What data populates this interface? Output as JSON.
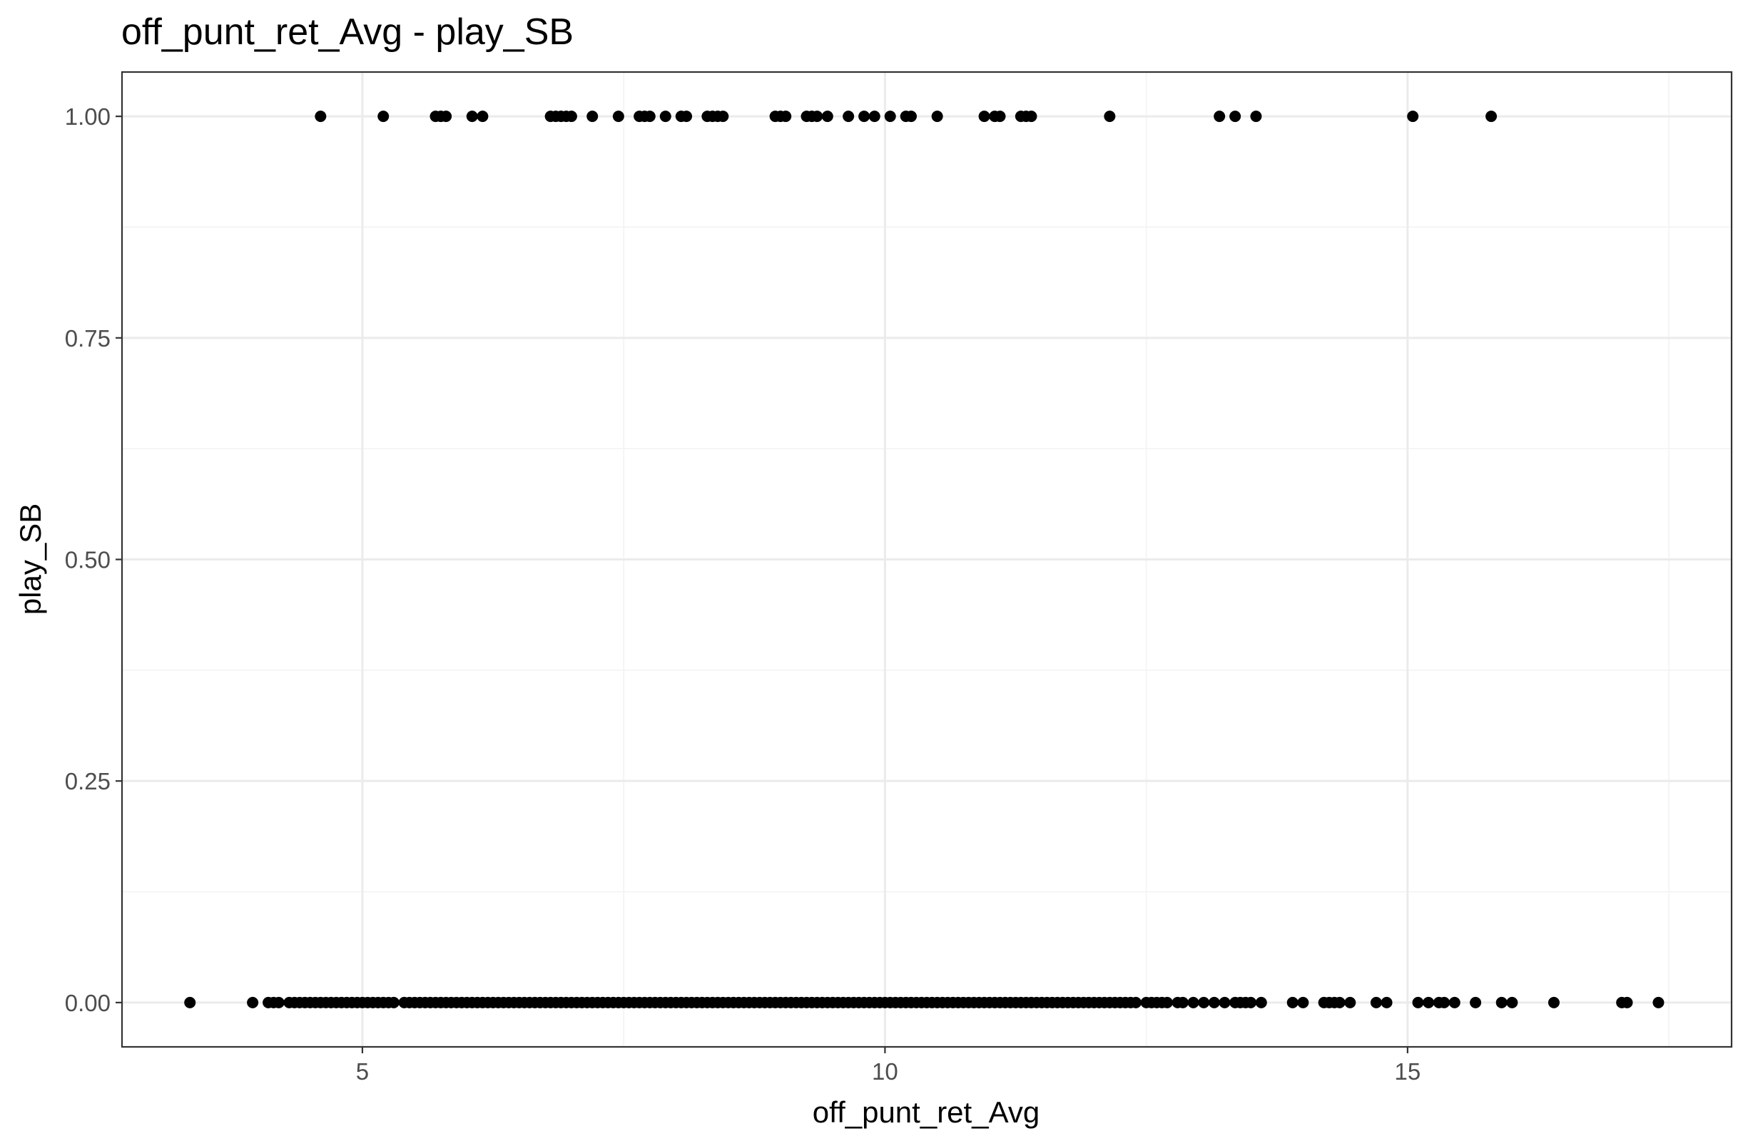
{
  "chart_data": {
    "type": "scatter",
    "title": "off_punt_ret_Avg - play_SB",
    "xlabel": "off_punt_ret_Avg",
    "ylabel": "play_SB",
    "xlim": [
      2.7,
      18.1
    ],
    "ylim": [
      -0.05,
      1.05
    ],
    "x_ticks": [
      5,
      10,
      15
    ],
    "x_tick_labels": [
      "5",
      "10",
      "15"
    ],
    "y_ticks": [
      0,
      0.25,
      0.5,
      0.75,
      1
    ],
    "y_tick_labels": [
      "0.00",
      "0.25",
      "0.50",
      "0.75",
      "1.00"
    ],
    "grid": true,
    "point_color": "#000000",
    "series": [
      {
        "y": 1,
        "x": [
          4.6,
          5.2,
          5.7,
          5.75,
          5.8,
          6.05,
          6.15,
          6.8,
          6.85,
          6.9,
          6.95,
          7.0,
          7.2,
          7.45,
          7.65,
          7.7,
          7.75,
          7.9,
          8.05,
          8.1,
          8.3,
          8.35,
          8.4,
          8.45,
          8.95,
          9.0,
          9.05,
          9.25,
          9.3,
          9.35,
          9.45,
          9.65,
          9.8,
          9.9,
          10.05,
          10.2,
          10.25,
          10.5,
          10.95,
          11.05,
          11.1,
          11.3,
          11.35,
          11.4,
          12.15,
          13.2,
          13.35,
          13.55,
          15.05,
          15.8
        ]
      },
      {
        "y": 0,
        "x": [
          3.35,
          3.95,
          4.1,
          4.15,
          4.2,
          4.3,
          4.35,
          4.4,
          4.45,
          4.5,
          4.55,
          4.6,
          4.65,
          4.7,
          4.75,
          4.8,
          4.85,
          4.9,
          4.95,
          5.0,
          5.05,
          5.1,
          5.15,
          5.2,
          5.25,
          5.3,
          5.4,
          5.45,
          5.5,
          5.55,
          5.6,
          5.65,
          5.7,
          5.75,
          5.8,
          5.85,
          5.9,
          5.95,
          6.0,
          6.05,
          6.1,
          6.15,
          6.2,
          6.25,
          6.3,
          6.35,
          6.4,
          6.45,
          6.5,
          6.55,
          6.6,
          6.65,
          6.7,
          6.75,
          6.8,
          6.85,
          6.9,
          6.95,
          7.0,
          7.05,
          7.1,
          7.15,
          7.2,
          7.25,
          7.3,
          7.35,
          7.4,
          7.45,
          7.5,
          7.55,
          7.6,
          7.65,
          7.7,
          7.75,
          7.8,
          7.85,
          7.9,
          7.95,
          8.0,
          8.05,
          8.1,
          8.15,
          8.2,
          8.25,
          8.3,
          8.35,
          8.4,
          8.45,
          8.5,
          8.55,
          8.6,
          8.65,
          8.7,
          8.75,
          8.8,
          8.85,
          8.9,
          8.95,
          9.0,
          9.05,
          9.1,
          9.15,
          9.2,
          9.25,
          9.3,
          9.35,
          9.4,
          9.45,
          9.5,
          9.55,
          9.6,
          9.65,
          9.7,
          9.75,
          9.8,
          9.85,
          9.9,
          9.95,
          10.0,
          10.05,
          10.1,
          10.15,
          10.2,
          10.25,
          10.3,
          10.35,
          10.4,
          10.45,
          10.5,
          10.55,
          10.6,
          10.65,
          10.7,
          10.75,
          10.8,
          10.85,
          10.9,
          10.95,
          11.0,
          11.05,
          11.1,
          11.15,
          11.2,
          11.25,
          11.3,
          11.35,
          11.4,
          11.45,
          11.5,
          11.55,
          11.6,
          11.65,
          11.7,
          11.75,
          11.8,
          11.85,
          11.9,
          11.95,
          12.0,
          12.05,
          12.1,
          12.15,
          12.2,
          12.25,
          12.3,
          12.35,
          12.4,
          12.5,
          12.55,
          12.6,
          12.65,
          12.7,
          12.8,
          12.85,
          12.95,
          13.05,
          13.15,
          13.25,
          13.35,
          13.4,
          13.45,
          13.5,
          13.6,
          13.9,
          14.0,
          14.2,
          14.25,
          14.3,
          14.35,
          14.45,
          14.7,
          14.8,
          15.1,
          15.2,
          15.3,
          15.35,
          15.45,
          15.65,
          15.9,
          16.0,
          16.4,
          17.05,
          17.1,
          17.4
        ]
      }
    ]
  }
}
